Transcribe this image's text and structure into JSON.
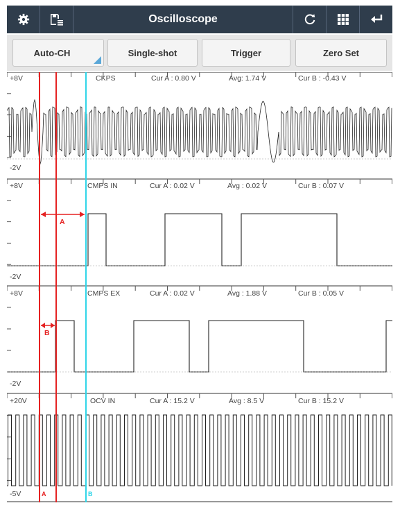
{
  "header": {
    "title": "Oscilloscope",
    "icons": [
      "gear-icon",
      "save-list-icon",
      "refresh-icon",
      "grid-icon",
      "return-icon"
    ]
  },
  "buttons": {
    "auto_ch": "Auto-CH",
    "single_shot": "Single-shot",
    "trigger": "Trigger",
    "zero_set": "Zero Set"
  },
  "channels": [
    {
      "name": "CKPS",
      "max": "+8V",
      "min": "-2V",
      "cur_a": "Cur A : 0.80 V",
      "avg": "Avg: 1.74 V",
      "cur_b": "Cur B : -0.43 V"
    },
    {
      "name": "CMPS IN",
      "max": "+8V",
      "min": "-2V",
      "cur_a": "Cur A : 0.02 V",
      "avg": "Avg : 0.02 V",
      "cur_b": "Cur B : 0.07 V"
    },
    {
      "name": "CMPS EX",
      "max": "+8V",
      "min": "-2V",
      "cur_a": "Cur A : 0.02 V",
      "avg": "Avg : 1.88 V",
      "cur_b": "Cur B : 0.05 V"
    },
    {
      "name": "OCV IN",
      "max": "+20V",
      "min": "-5V",
      "cur_a": "Cur A : 15.2 V",
      "avg": "Avg : 8.5 V",
      "cur_b": "Cur B : 15.2 V"
    }
  ],
  "cursors": {
    "a_label": "A",
    "b_label": "B",
    "measure_a": "A",
    "measure_b": "B",
    "colors": {
      "a": "#e52222",
      "b": "#2fd5e8"
    }
  }
}
